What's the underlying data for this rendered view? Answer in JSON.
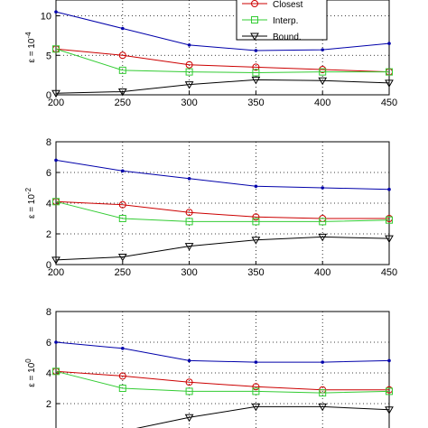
{
  "chart_data": [
    {
      "type": "line",
      "ylabel_base": "ε = 10",
      "ylabel_exp": "-4",
      "x": [
        200,
        250,
        300,
        350,
        400,
        450
      ],
      "xticks": [
        "200",
        "250",
        "300",
        "350",
        "400",
        "450"
      ],
      "yticks": [
        "0",
        "5",
        "10"
      ],
      "ylim": [
        0,
        12
      ],
      "grid": true,
      "legend": {
        "placement": "top-right",
        "entries": [
          "Closest",
          "Interp.",
          "Bound."
        ]
      },
      "series": [
        {
          "color": "#0000aa",
          "marker": "dot",
          "values": [
            10.5,
            8.4,
            6.3,
            5.6,
            5.7,
            6.5
          ]
        },
        {
          "name": "Closest",
          "color": "#cc0000",
          "marker": "circle",
          "values": [
            5.8,
            5.0,
            3.8,
            3.5,
            3.2,
            2.9
          ]
        },
        {
          "name": "Interp.",
          "color": "#33cc33",
          "marker": "square",
          "values": [
            5.8,
            3.1,
            2.9,
            2.8,
            2.9,
            2.9
          ]
        },
        {
          "name": "Bound.",
          "color": "#000000",
          "marker": "triangle-down",
          "values": [
            0.2,
            0.4,
            1.3,
            1.9,
            1.8,
            1.5
          ]
        }
      ]
    },
    {
      "type": "line",
      "ylabel_base": "ε = 10",
      "ylabel_exp": "-2",
      "x": [
        200,
        250,
        300,
        350,
        400,
        450
      ],
      "xticks": [
        "200",
        "250",
        "300",
        "350",
        "400",
        "450"
      ],
      "yticks": [
        "0",
        "2",
        "4",
        "6",
        "8"
      ],
      "ylim": [
        0,
        8
      ],
      "grid": true,
      "series": [
        {
          "color": "#0000aa",
          "marker": "dot",
          "values": [
            6.8,
            6.1,
            5.6,
            5.1,
            5.0,
            4.9
          ]
        },
        {
          "name": "Closest",
          "color": "#cc0000",
          "marker": "circle",
          "values": [
            4.1,
            3.9,
            3.4,
            3.1,
            3.0,
            3.0
          ]
        },
        {
          "name": "Interp.",
          "color": "#33cc33",
          "marker": "square",
          "values": [
            4.1,
            3.0,
            2.8,
            2.8,
            2.8,
            2.9
          ]
        },
        {
          "name": "Bound.",
          "color": "#000000",
          "marker": "triangle-down",
          "values": [
            0.3,
            0.5,
            1.2,
            1.6,
            1.8,
            1.7
          ]
        }
      ]
    },
    {
      "type": "line",
      "ylabel_base": "ε = 10",
      "ylabel_exp": "0",
      "x": [
        200,
        250,
        300,
        350,
        400,
        450
      ],
      "xticks": [],
      "yticks": [
        "2",
        "4",
        "6",
        "8"
      ],
      "ylim": [
        0,
        8
      ],
      "grid": true,
      "series": [
        {
          "color": "#0000aa",
          "marker": "dot",
          "values": [
            6.0,
            5.6,
            4.8,
            4.7,
            4.7,
            4.8
          ]
        },
        {
          "name": "Closest",
          "color": "#cc0000",
          "marker": "circle",
          "values": [
            4.1,
            3.8,
            3.4,
            3.1,
            2.9,
            2.9
          ]
        },
        {
          "name": "Interp.",
          "color": "#33cc33",
          "marker": "square",
          "values": [
            4.1,
            3.0,
            2.8,
            2.8,
            2.7,
            2.8
          ]
        },
        {
          "name": "Bound.",
          "color": "#000000",
          "marker": "triangle-down",
          "values": [
            0.1,
            0.2,
            1.1,
            1.8,
            1.8,
            1.6
          ]
        }
      ]
    }
  ]
}
